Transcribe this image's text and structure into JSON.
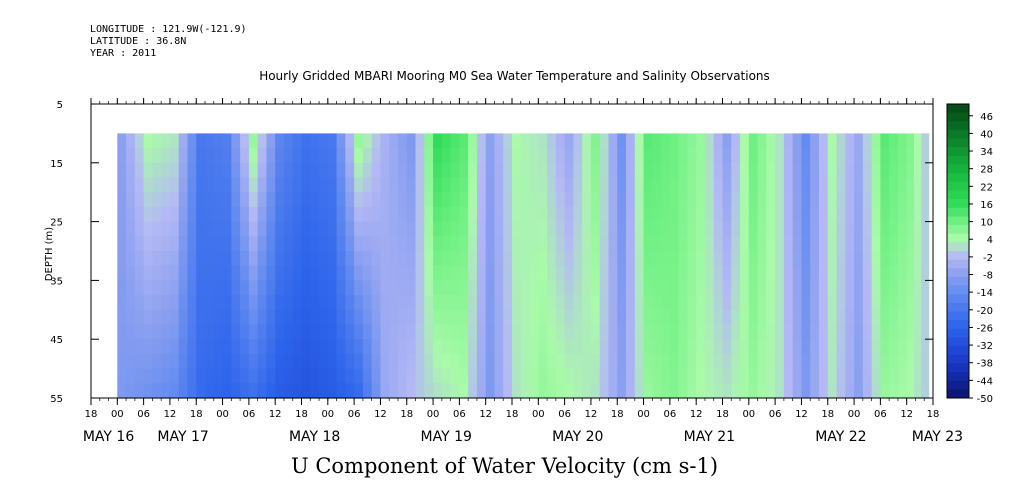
{
  "header": {
    "longitude": "LONGITUDE : 121.9W(-121.9)",
    "latitude": "LATITUDE : 36.8N",
    "year": "YEAR : 2011",
    "title": "Hourly Gridded MBARI Mooring M0 Sea Water Temperature and Salinity Observations"
  },
  "chart_data": {
    "type": "heatmap",
    "title": "Hourly Gridded MBARI Mooring M0 Sea Water Temperature and Salinity Observations",
    "xlabel": "U Component of Water Velocity (cm s-1)",
    "ylabel": "DEPTH (m)",
    "y_ticks": [
      "5",
      "15",
      "25",
      "35",
      "45",
      "55"
    ],
    "ylim": [
      5,
      55
    ],
    "y_inverted": true,
    "x_hour_ticks": [
      "18",
      "00",
      "06",
      "12",
      "18",
      "00",
      "06",
      "12",
      "18",
      "00",
      "06",
      "12",
      "18",
      "00",
      "06",
      "12",
      "18",
      "00",
      "06",
      "12",
      "18",
      "00",
      "06",
      "12",
      "18",
      "00",
      "06",
      "12",
      "18",
      "00",
      "06",
      "12",
      "18"
    ],
    "x_day_labels": [
      "MAY 16",
      "MAY 17",
      "MAY 18",
      "MAY 19",
      "MAY 20",
      "MAY 21",
      "MAY 22",
      "MAY 23"
    ],
    "xlim_hours": [
      -6,
      186
    ],
    "data_hours": [
      0,
      185
    ],
    "data_depth_range": [
      10,
      55
    ],
    "colorbar": {
      "labels": [
        "46",
        "40",
        "34",
        "28",
        "22",
        "16",
        "10",
        "4",
        "-2",
        "-8",
        "-14",
        "-20",
        "-26",
        "-32",
        "-38",
        "-44",
        "-50"
      ],
      "range": [
        -50,
        50
      ]
    },
    "columns": [
      {
        "hour": 0,
        "surface": -8,
        "bottom": -10
      },
      {
        "hour": 6,
        "surface": 4,
        "bottom": -12
      },
      {
        "hour": 12,
        "surface": 2,
        "bottom": -14
      },
      {
        "hour": 18,
        "surface": -20,
        "bottom": -24
      },
      {
        "hour": 24,
        "surface": -18,
        "bottom": -26
      },
      {
        "hour": 30,
        "surface": 6,
        "bottom": -22
      },
      {
        "hour": 36,
        "surface": -16,
        "bottom": -28
      },
      {
        "hour": 42,
        "surface": -22,
        "bottom": -30
      },
      {
        "hour": 48,
        "surface": -20,
        "bottom": -28
      },
      {
        "hour": 54,
        "surface": 6,
        "bottom": -24
      },
      {
        "hour": 60,
        "surface": -4,
        "bottom": -6
      },
      {
        "hour": 66,
        "surface": -10,
        "bottom": -2
      },
      {
        "hour": 72,
        "surface": 16,
        "bottom": 2
      },
      {
        "hour": 78,
        "surface": 12,
        "bottom": 4
      },
      {
        "hour": 84,
        "surface": -8,
        "bottom": -10
      },
      {
        "hour": 90,
        "surface": 4,
        "bottom": 2
      },
      {
        "hour": 96,
        "surface": 2,
        "bottom": 6
      },
      {
        "hour": 102,
        "surface": -6,
        "bottom": 4
      },
      {
        "hour": 108,
        "surface": 8,
        "bottom": 2
      },
      {
        "hour": 114,
        "surface": -12,
        "bottom": -8
      },
      {
        "hour": 120,
        "surface": 12,
        "bottom": 6
      },
      {
        "hour": 126,
        "surface": 10,
        "bottom": 8
      },
      {
        "hour": 132,
        "surface": 6,
        "bottom": 4
      },
      {
        "hour": 138,
        "surface": -8,
        "bottom": 2
      },
      {
        "hour": 144,
        "surface": 10,
        "bottom": 6
      },
      {
        "hour": 150,
        "surface": 2,
        "bottom": 2
      },
      {
        "hour": 156,
        "surface": -14,
        "bottom": -10
      },
      {
        "hour": 162,
        "surface": 4,
        "bottom": 2
      },
      {
        "hour": 168,
        "surface": -6,
        "bottom": -8
      },
      {
        "hour": 174,
        "surface": 12,
        "bottom": 6
      },
      {
        "hour": 180,
        "surface": 8,
        "bottom": 4
      },
      {
        "hour": 185,
        "surface": -4,
        "bottom": -2
      }
    ]
  }
}
